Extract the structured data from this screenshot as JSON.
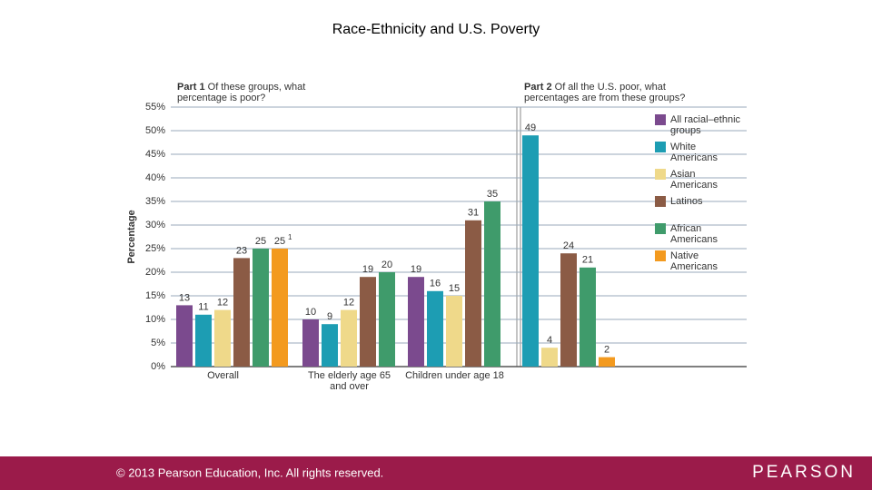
{
  "title": "Race-Ethnicity and U.S. Poverty",
  "chart_data": [
    {
      "type": "bar",
      "title": "Part 1",
      "subtitle": "Of these groups, what percentage is poor?",
      "y_label": "Percentage",
      "grid": true,
      "ylim": [
        0,
        55
      ],
      "yticks": [
        {
          "value": 0,
          "label": "0%"
        },
        {
          "value": 5,
          "label": "5%"
        },
        {
          "value": 10,
          "label": "10%"
        },
        {
          "value": 15,
          "label": "15%"
        },
        {
          "value": 20,
          "label": "20%"
        },
        {
          "value": 25,
          "label": "25%"
        },
        {
          "value": 30,
          "label": "30%"
        },
        {
          "value": 35,
          "label": "35%"
        },
        {
          "value": 40,
          "label": "40%"
        },
        {
          "value": 45,
          "label": "45%"
        },
        {
          "value": 50,
          "label": "50%"
        },
        {
          "value": 55,
          "label": "55%"
        }
      ],
      "categories": [
        "Overall",
        "The elderly age 65 and over",
        "Children under age 18"
      ],
      "footnote_mark": "1",
      "series": [
        {
          "name": "All racial–ethnic groups",
          "color": "#7b4a8e",
          "values": [
            13,
            10,
            19
          ]
        },
        {
          "name": "White Americans",
          "color": "#1d9db3",
          "values": [
            11,
            9,
            16
          ]
        },
        {
          "name": "Asian Americans",
          "color": "#efd98a",
          "values": [
            12,
            12,
            15
          ]
        },
        {
          "name": "Latinos",
          "color": "#8b5b45",
          "values": [
            23,
            19,
            31
          ]
        },
        {
          "name": "African Americans",
          "color": "#3f9b6b",
          "values": [
            25,
            20,
            35
          ]
        },
        {
          "name": "Native Americans",
          "color": "#f39a1f",
          "values": [
            25,
            null,
            null
          ]
        }
      ]
    },
    {
      "type": "bar",
      "title": "Part 2",
      "subtitle": "Of all the U.S. poor, what percentages are from these groups?",
      "ylim": [
        0,
        55
      ],
      "legend": "right",
      "categories": [
        null
      ],
      "series": [
        {
          "name": "All racial–ethnic groups",
          "color": "#7b4a8e",
          "values": [
            null
          ]
        },
        {
          "name": "White Americans",
          "color": "#1d9db3",
          "values": [
            49
          ]
        },
        {
          "name": "Asian Americans",
          "color": "#efd98a",
          "values": [
            4
          ]
        },
        {
          "name": "Latinos",
          "color": "#8b5b45",
          "values": [
            24
          ]
        },
        {
          "name": "African Americans",
          "color": "#3f9b6b",
          "values": [
            21
          ]
        },
        {
          "name": "Native Americans",
          "color": "#f39a1f",
          "values": [
            2
          ]
        }
      ]
    }
  ],
  "footer": {
    "copyright": "© 2013 Pearson Education, Inc. All rights reserved.",
    "logo": "PEARSON"
  }
}
